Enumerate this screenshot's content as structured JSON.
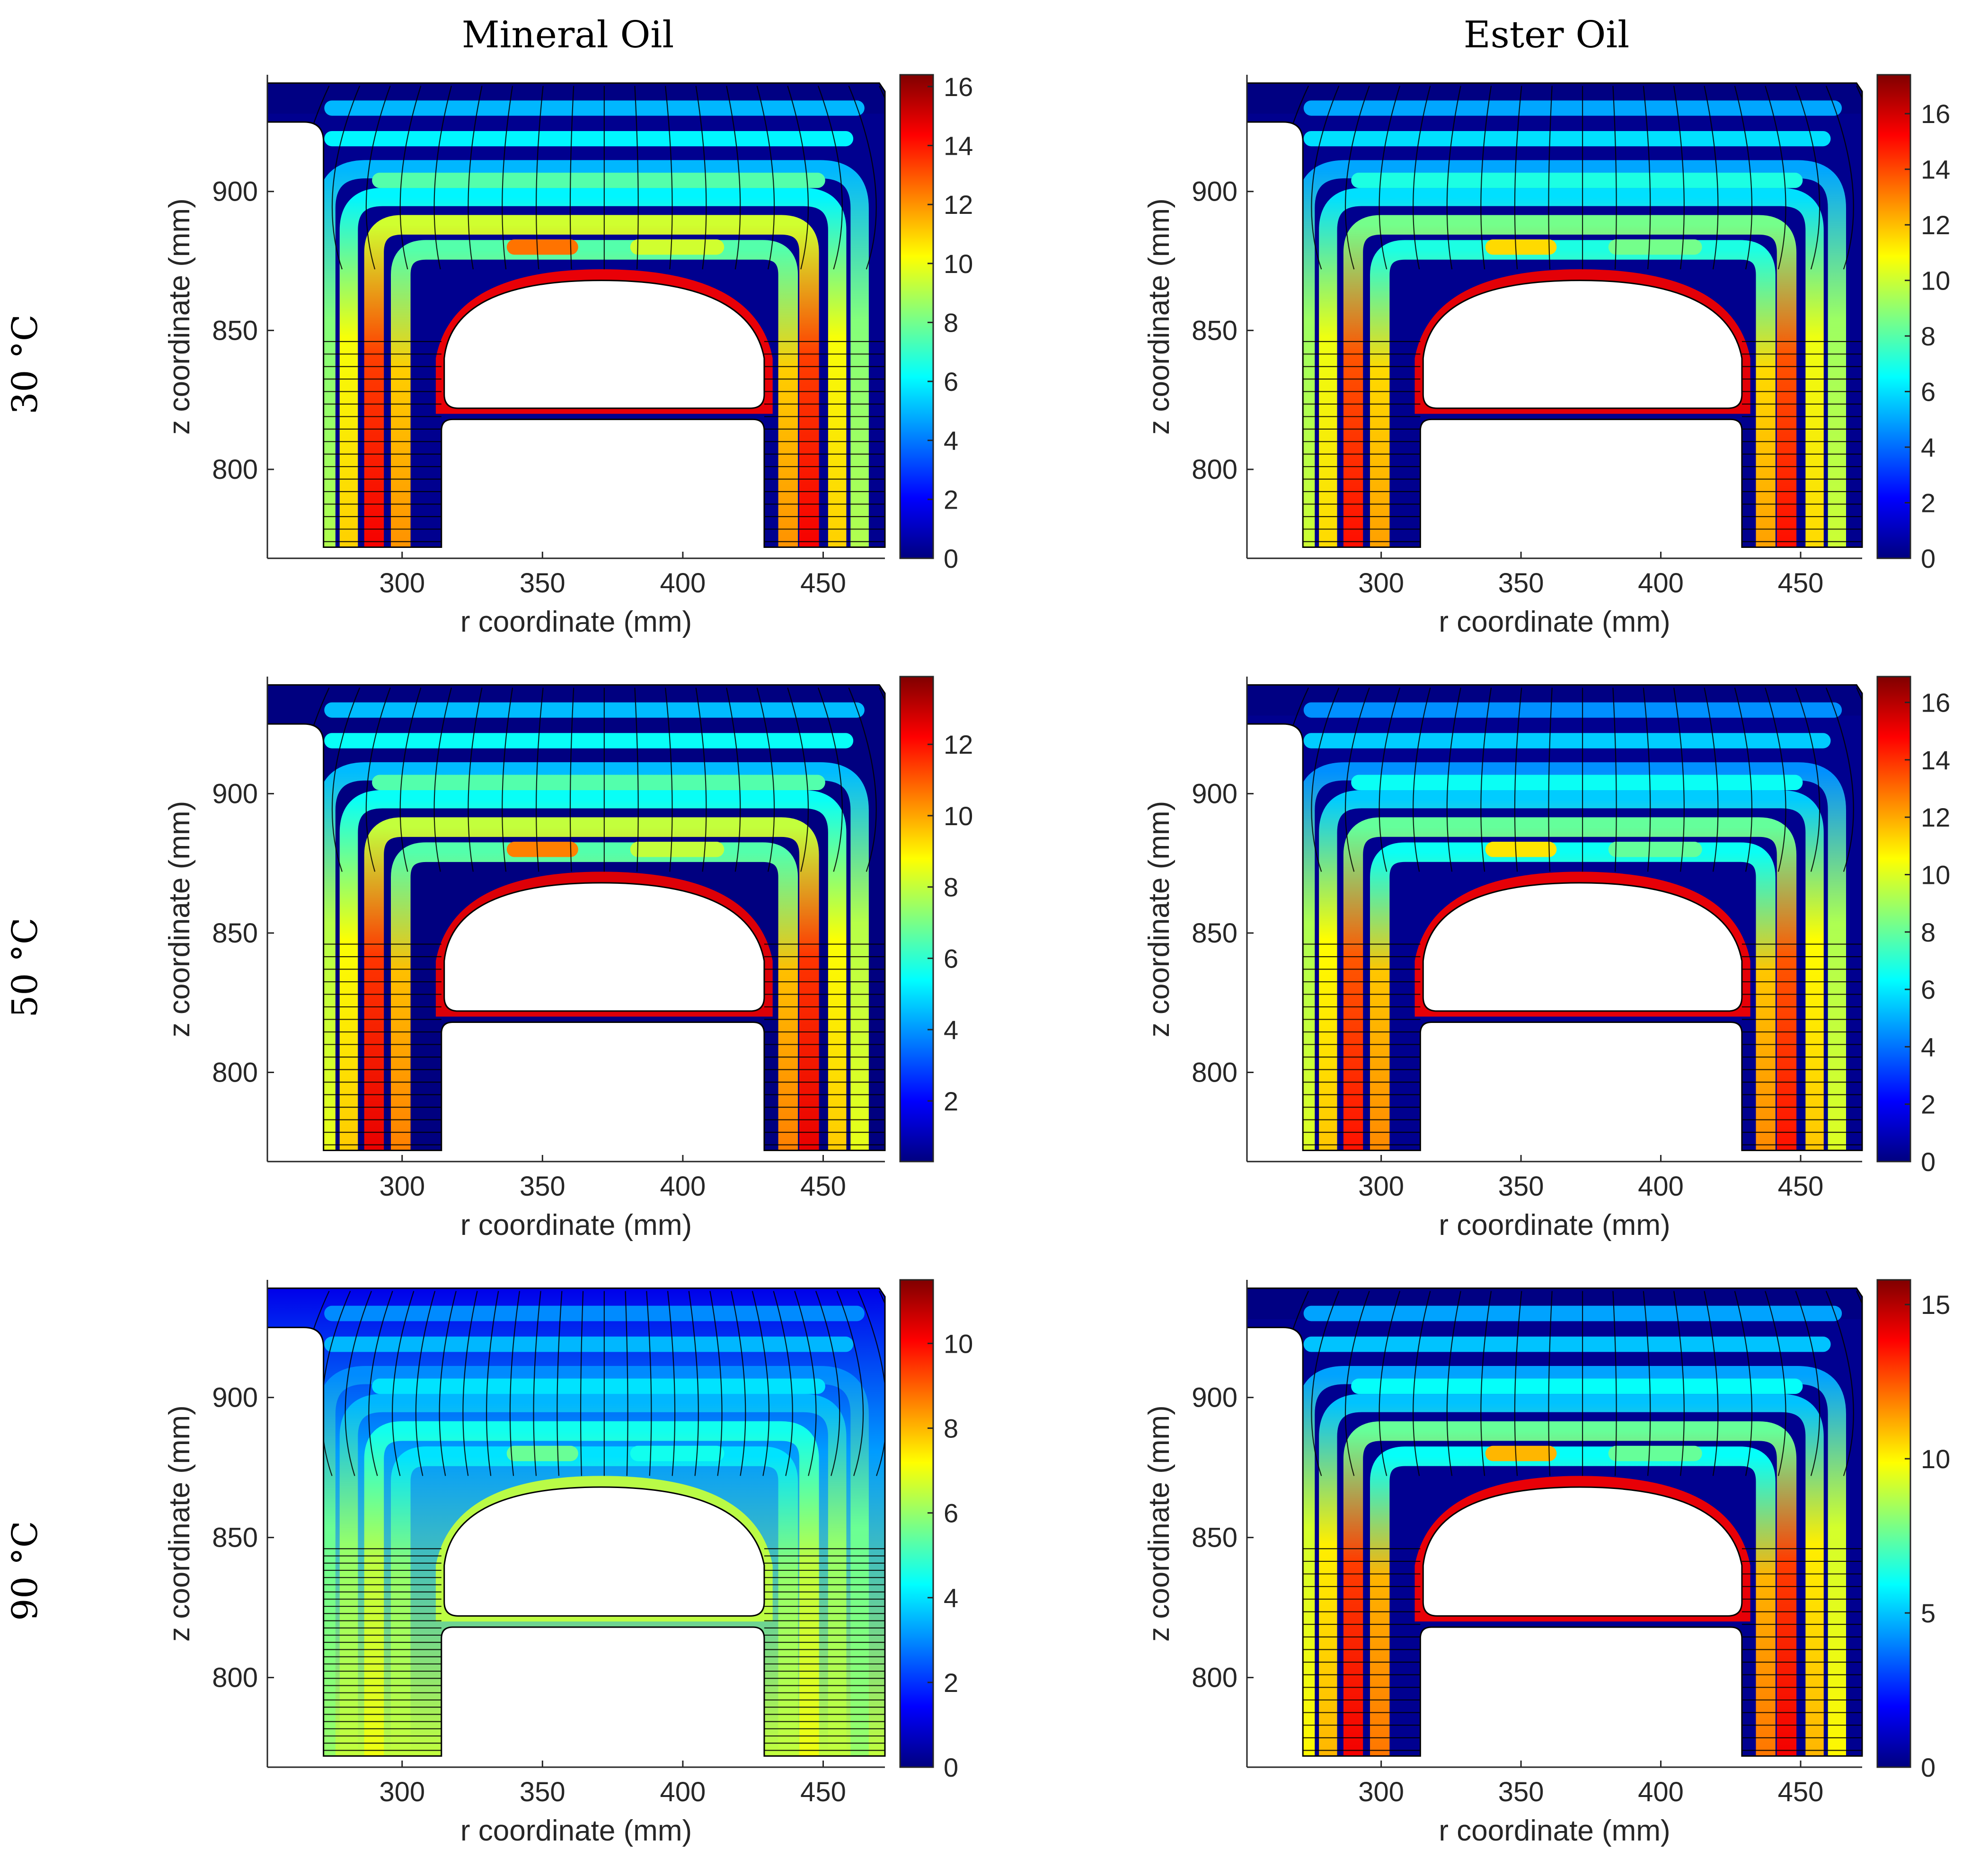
{
  "figure": {
    "column_titles": [
      "Mineral Oil",
      "Ester Oil"
    ],
    "row_labels": [
      "30 °C",
      "50 °C",
      "90 °C"
    ]
  },
  "chart_data": [
    {
      "type": "heatmap",
      "panel": "Mineral Oil, 30 °C",
      "xlabel": "r coordinate (mm)",
      "ylabel": "z coordinate (mm)",
      "xlim": [
        252,
        472
      ],
      "ylim": [
        768,
        942
      ],
      "xticks": [
        300,
        350,
        400,
        450
      ],
      "yticks": [
        800,
        850,
        900
      ],
      "colorbar": {
        "min": 0,
        "max": 16.4,
        "ticks": [
          0,
          2,
          4,
          6,
          8,
          10,
          12,
          14,
          16
        ]
      },
      "paper_field": [
        12.5,
        9.5,
        7.5,
        6.0,
        5.0
      ],
      "paper_vertical": [
        14.5,
        12.0,
        11.0,
        9.0
      ],
      "inner_cap": 14.5,
      "oil_field": 1.0,
      "oil_uniform": false
    },
    {
      "type": "heatmap",
      "panel": "Ester Oil, 30 °C",
      "xlabel": "r coordinate (mm)",
      "ylabel": "z coordinate (mm)",
      "xlim": [
        252,
        472
      ],
      "ylim": [
        768,
        942
      ],
      "xticks": [
        300,
        350,
        400,
        450
      ],
      "yticks": [
        800,
        850,
        900
      ],
      "colorbar": {
        "min": 0,
        "max": 17.4,
        "ticks": [
          0,
          2,
          4,
          6,
          8,
          10,
          12,
          14,
          16
        ]
      },
      "paper_field": [
        11.5,
        8.5,
        7.0,
        6.0,
        5.0
      ],
      "paper_vertical": [
        15.0,
        12.5,
        11.5,
        10.0
      ],
      "inner_cap": 15.5,
      "oil_field": 1.0,
      "oil_uniform": false
    },
    {
      "type": "heatmap",
      "panel": "Mineral Oil, 50 °C",
      "xlabel": "r coordinate (mm)",
      "ylabel": "z coordinate (mm)",
      "xlim": [
        252,
        472
      ],
      "ylim": [
        768,
        942
      ],
      "xticks": [
        300,
        350,
        400,
        450
      ],
      "yticks": [
        800,
        850,
        900
      ],
      "colorbar": {
        "min": 0.3,
        "max": 13.9,
        "ticks": [
          2,
          4,
          6,
          8,
          10,
          12
        ]
      },
      "paper_field": [
        10.5,
        8.0,
        6.5,
        5.5,
        4.5
      ],
      "paper_vertical": [
        12.5,
        10.5,
        9.5,
        8.5
      ],
      "inner_cap": 12.5,
      "oil_field": 1.0,
      "oil_uniform": false
    },
    {
      "type": "heatmap",
      "panel": "Ester Oil, 50 °C",
      "xlabel": "r coordinate (mm)",
      "ylabel": "z coordinate (mm)",
      "xlim": [
        252,
        472
      ],
      "ylim": [
        768,
        942
      ],
      "xticks": [
        300,
        350,
        400,
        450
      ],
      "yticks": [
        800,
        850,
        900
      ],
      "colorbar": {
        "min": 0,
        "max": 16.9,
        "ticks": [
          0,
          2,
          4,
          6,
          8,
          10,
          12,
          14,
          16
        ]
      },
      "paper_field": [
        11.0,
        8.0,
        6.5,
        5.5,
        4.5
      ],
      "paper_vertical": [
        14.5,
        12.5,
        11.5,
        10.0
      ],
      "inner_cap": 15.0,
      "oil_field": 1.0,
      "oil_uniform": false
    },
    {
      "type": "heatmap",
      "panel": "Mineral Oil, 90 °C",
      "xlabel": "r coordinate (mm)",
      "ylabel": "z coordinate (mm)",
      "xlim": [
        252,
        472
      ],
      "ylim": [
        768,
        942
      ],
      "xticks": [
        300,
        350,
        400,
        450
      ],
      "yticks": [
        800,
        850,
        900
      ],
      "colorbar": {
        "min": 0,
        "max": 11.5,
        "ticks": [
          0,
          2,
          4,
          6,
          8,
          10
        ]
      },
      "paper_field": [
        5.5,
        4.5,
        4.0,
        3.5,
        3.0
      ],
      "paper_vertical": [
        7.0,
        6.5,
        6.5,
        6.0
      ],
      "inner_cap": 6.5,
      "oil_field": 4.5,
      "oil_uniform": true
    },
    {
      "type": "heatmap",
      "panel": "Ester Oil, 90 °C",
      "xlabel": "r coordinate (mm)",
      "ylabel": "z coordinate (mm)",
      "xlim": [
        252,
        472
      ],
      "ylim": [
        768,
        942
      ],
      "xticks": [
        300,
        350,
        400,
        450
      ],
      "yticks": [
        800,
        850,
        900
      ],
      "colorbar": {
        "min": 0,
        "max": 15.8,
        "ticks": [
          0,
          5,
          10,
          15
        ]
      },
      "paper_field": [
        11.0,
        7.5,
        6.0,
        5.0,
        4.5
      ],
      "paper_vertical": [
        14.0,
        12.0,
        11.0,
        10.0
      ],
      "inner_cap": 14.0,
      "oil_field": 1.0,
      "oil_uniform": false
    }
  ]
}
